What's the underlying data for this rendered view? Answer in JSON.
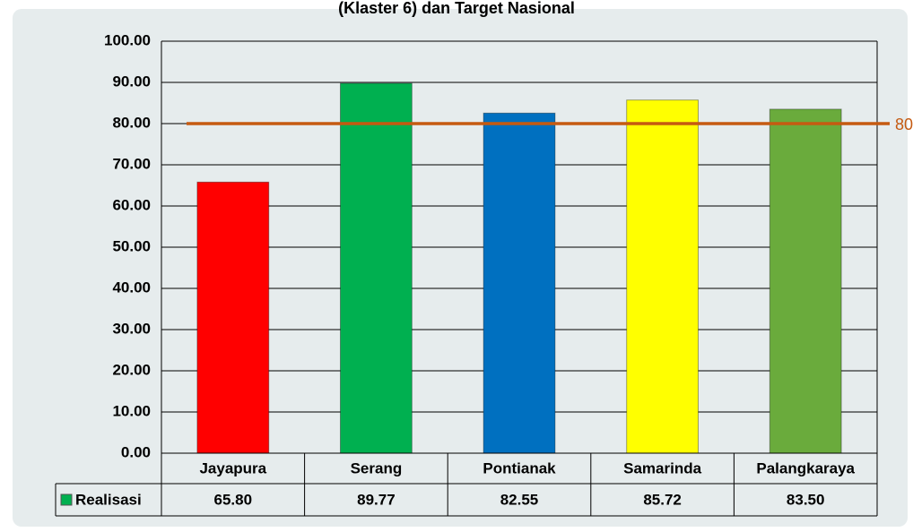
{
  "chart_data": {
    "type": "bar",
    "title": "(Klaster 6) dan Target Nasional",
    "categories": [
      "Jayapura",
      "Serang",
      "Pontianak",
      "Samarinda",
      "Palangkaraya"
    ],
    "series": [
      {
        "name": "Realisasi",
        "color": "#00b050",
        "colors": [
          "#ff0000",
          "#00b050",
          "#0070c0",
          "#ffff00",
          "#6aab3c"
        ],
        "values": [
          65.8,
          89.77,
          82.55,
          85.72,
          83.5
        ],
        "value_labels": [
          "65.80",
          "89.77",
          "82.55",
          "85.72",
          "83.50"
        ]
      }
    ],
    "target": 80,
    "target_color": "#c55a11",
    "ylim": [
      0,
      100
    ],
    "yticks": [
      {
        "value": 0,
        "label": "0.00"
      },
      {
        "value": 10,
        "label": "10.00"
      },
      {
        "value": 20,
        "label": "20.00"
      },
      {
        "value": 30,
        "label": "30.00"
      },
      {
        "value": 40,
        "label": "40.00"
      },
      {
        "value": 50,
        "label": "50.00"
      },
      {
        "value": 60,
        "label": "60.00"
      },
      {
        "value": 70,
        "label": "70.00"
      },
      {
        "value": 80,
        "label": "80.00"
      },
      {
        "value": 90,
        "label": "90.00"
      },
      {
        "value": 100,
        "label": "100.00"
      }
    ],
    "grid": true
  }
}
